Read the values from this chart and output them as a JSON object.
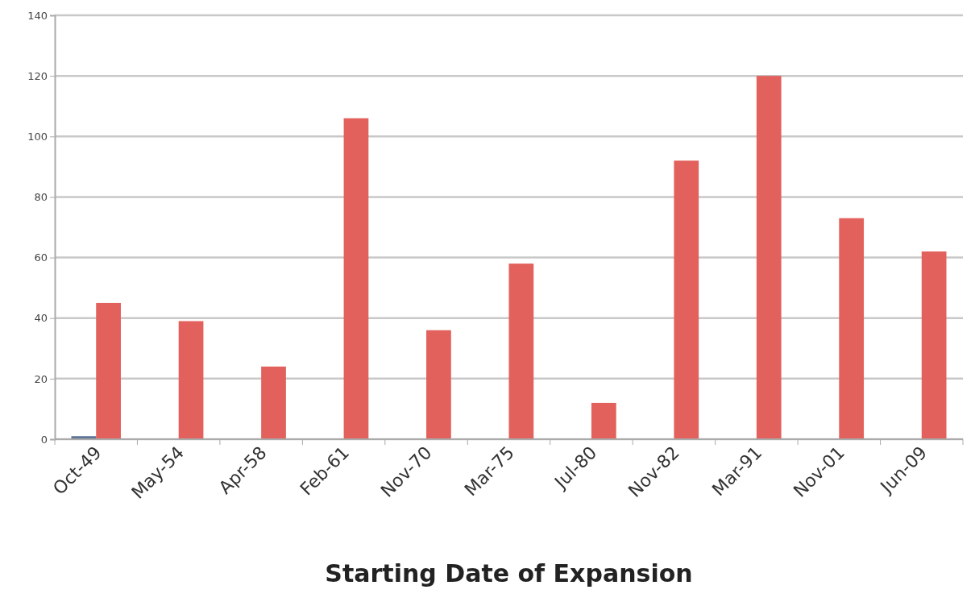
{
  "chart_data": {
    "type": "bar",
    "xlabel": "Starting Date of Expansion",
    "categories": [
      "Oct-49",
      "May-54",
      "Apr-58",
      "Feb-61",
      "Nov-70",
      "Mar-75",
      "Jul-80",
      "Nov-82",
      "Mar-91",
      "Nov-01",
      "Jun-09"
    ],
    "series": [
      {
        "color": "#5b7394",
        "values": [
          1,
          null,
          null,
          null,
          null,
          null,
          null,
          null,
          null,
          null,
          null
        ]
      },
      {
        "color": "#e2615c",
        "values": [
          45,
          39,
          24,
          106,
          36,
          58,
          12,
          92,
          120,
          73,
          62
        ]
      }
    ],
    "ylim": [
      0,
      140
    ],
    "yticks": [
      0,
      20,
      40,
      60,
      80,
      100,
      120,
      140
    ],
    "grid": "y"
  }
}
